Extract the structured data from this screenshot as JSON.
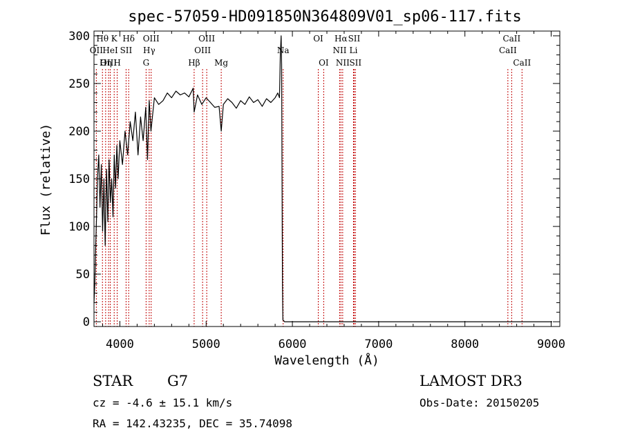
{
  "chart_data": {
    "type": "line",
    "title": "spec-57059-HD091850N364809V01_sp06-117.fits",
    "xlabel": "Wavelength (Å)",
    "ylabel": "Flux (relative)",
    "xlim": [
      3700,
      9100
    ],
    "ylim": [
      -5,
      305
    ],
    "xticks": [
      4000,
      5000,
      6000,
      7000,
      8000,
      9000
    ],
    "yticks": [
      0,
      50,
      100,
      150,
      200,
      250,
      300
    ],
    "series": [
      {
        "name": "spectrum",
        "x": [
          3700,
          3710,
          3720,
          3730,
          3740,
          3755,
          3770,
          3785,
          3800,
          3815,
          3830,
          3845,
          3860,
          3875,
          3890,
          3905,
          3920,
          3935,
          3950,
          3965,
          3980,
          4000,
          4030,
          4060,
          4090,
          4120,
          4150,
          4180,
          4210,
          4240,
          4270,
          4300,
          4320,
          4340,
          4360,
          4400,
          4450,
          4500,
          4550,
          4600,
          4650,
          4700,
          4750,
          4800,
          4850,
          4861,
          4900,
          4950,
          5000,
          5050,
          5100,
          5150,
          5175,
          5200,
          5250,
          5300,
          5350,
          5400,
          5450,
          5500,
          5550,
          5600,
          5650,
          5700,
          5750,
          5800,
          5830,
          5850,
          5860,
          5870,
          5875,
          5880,
          5885,
          5890,
          5900,
          5910,
          5950,
          6100,
          6300,
          6500,
          6700,
          6900,
          7100,
          7200,
          7250,
          7300,
          7350,
          7380,
          7395,
          7405,
          7410,
          7420,
          7440,
          7460,
          7480,
          7500,
          7550,
          7600,
          7650,
          7700,
          7750,
          7800,
          7850,
          7900,
          7950,
          8000,
          8050,
          8100,
          8150,
          8200,
          8250,
          8300,
          8350,
          8400,
          8450,
          8500,
          8550,
          8600,
          8650,
          8700,
          8750,
          8800,
          8850,
          8900,
          8950,
          8990,
          8995,
          9000,
          9010
        ],
        "y": [
          20,
          40,
          80,
          110,
          150,
          175,
          120,
          165,
          95,
          150,
          80,
          160,
          105,
          170,
          125,
          150,
          110,
          175,
          140,
          185,
          150,
          190,
          165,
          200,
          175,
          210,
          190,
          220,
          175,
          215,
          190,
          225,
          170,
          232,
          200,
          235,
          228,
          232,
          240,
          235,
          242,
          238,
          240,
          236,
          245,
          220,
          238,
          228,
          235,
          230,
          225,
          226,
          200,
          228,
          234,
          230,
          224,
          232,
          228,
          236,
          230,
          233,
          226,
          234,
          230,
          235,
          240,
          235,
          280,
          300,
          270,
          150,
          40,
          2,
          1,
          0,
          0,
          0,
          0,
          0,
          0,
          0,
          0,
          0,
          0,
          0,
          0,
          0,
          0,
          0,
          0,
          0,
          0,
          0,
          0,
          0,
          0,
          0,
          0,
          0,
          0,
          0,
          0,
          0,
          0,
          0,
          0,
          0,
          0,
          0,
          0,
          0,
          0,
          0,
          0,
          0,
          0,
          0,
          0,
          0,
          0,
          0,
          0,
          0,
          0,
          0,
          0,
          0,
          0
        ]
      }
    ],
    "spectral_lines": [
      {
        "label": "Hθ",
        "x": 3798,
        "row": 0
      },
      {
        "label": "OII",
        "x": 3727,
        "row": 1
      },
      {
        "label": "OIII",
        "x": 3869,
        "row": 2
      },
      {
        "label": "Hη",
        "x": 3835,
        "row": 2
      },
      {
        "label": "K",
        "x": 3934,
        "row": 0
      },
      {
        "label": "HeI",
        "x": 3889,
        "row": 1
      },
      {
        "label": "H",
        "x": 3969,
        "row": 2
      },
      {
        "label": "Hδ",
        "x": 4102,
        "row": 0
      },
      {
        "label": "SII",
        "x": 4072,
        "row": 1
      },
      {
        "label": "OIII",
        "x": 4363,
        "row": 0
      },
      {
        "label": "Hγ",
        "x": 4340,
        "row": 1
      },
      {
        "label": "G",
        "x": 4304,
        "row": 2
      },
      {
        "label": "Hβ",
        "x": 4861,
        "row": 2
      },
      {
        "label": "OIII",
        "x": 5007,
        "row": 0
      },
      {
        "label": "OIII",
        "x": 4959,
        "row": 1
      },
      {
        "label": "Mg",
        "x": 5175,
        "row": 2
      },
      {
        "label": "Na",
        "x": 5893,
        "row": 1
      },
      {
        "label": "OI",
        "x": 6300,
        "row": 0
      },
      {
        "label": "OI",
        "x": 6363,
        "row": 2
      },
      {
        "label": "Hα",
        "x": 6563,
        "row": 0
      },
      {
        "label": "SII",
        "x": 6716,
        "row": 0
      },
      {
        "label": "NII",
        "x": 6548,
        "row": 1
      },
      {
        "label": "Li",
        "x": 6708,
        "row": 1
      },
      {
        "label": "NII",
        "x": 6583,
        "row": 2
      },
      {
        "label": "SII",
        "x": 6731,
        "row": 2
      },
      {
        "label": "CaII",
        "x": 8542,
        "row": 0
      },
      {
        "label": "CaII",
        "x": 8498,
        "row": 1
      },
      {
        "label": "CaII",
        "x": 8662,
        "row": 2
      }
    ]
  },
  "info": {
    "object_class": "STAR",
    "subclass": "G7",
    "survey": "LAMOST DR3",
    "cz": "cz = -4.6 ± 15.1 km/s",
    "obs_date": "Obs-Date: 20150205",
    "coords": "RA = 142.43235, DEC =  35.74098"
  },
  "colors": {
    "spectrum": "#000000",
    "line_marker": "#c00000",
    "axes": "#000000"
  }
}
